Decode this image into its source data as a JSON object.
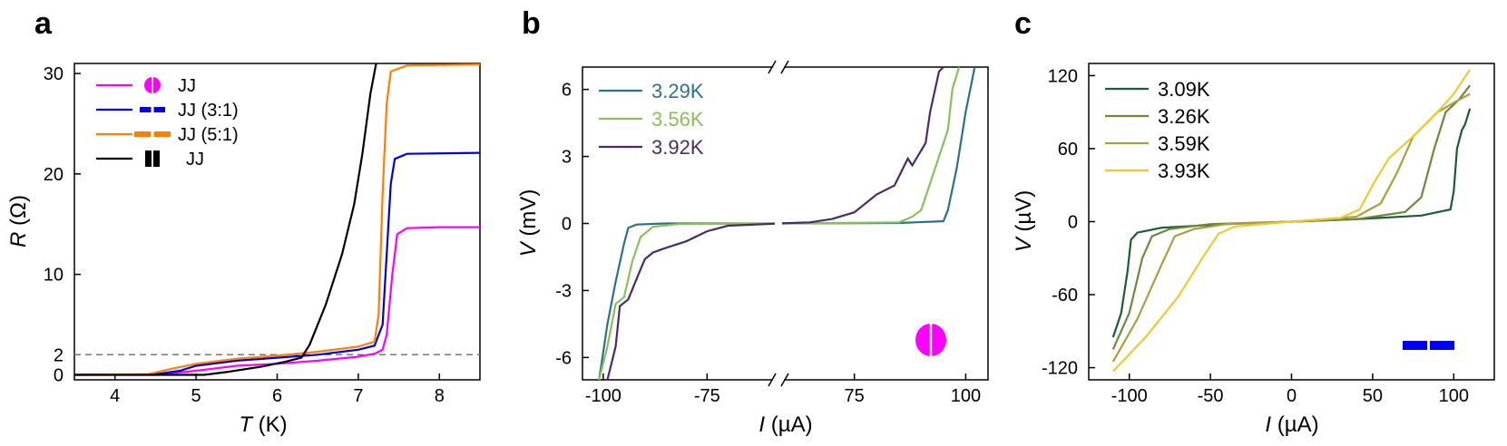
{
  "chart_data": [
    {
      "panel": "a",
      "type": "line",
      "xlabel_var": "T",
      "xlabel_unit": " (K)",
      "ylabel_var": "R",
      "ylabel_unit": " (Ω)",
      "xlim": [
        3.5,
        8.5
      ],
      "ylim": [
        -0.5,
        31
      ],
      "xticks": [
        4,
        5,
        6,
        7,
        8
      ],
      "yticks": [
        0,
        2,
        10,
        20,
        30
      ],
      "ref_line_y": 2,
      "legend_position": "top-left",
      "series": [
        {
          "name": "JJ",
          "color": "#ff00ff",
          "symbol": "circle-split-icon",
          "points": [
            [
              3.5,
              0
            ],
            [
              4.5,
              0
            ],
            [
              5.0,
              0.4
            ],
            [
              5.5,
              0.9
            ],
            [
              6.0,
              1.1
            ],
            [
              6.5,
              1.4
            ],
            [
              7.0,
              1.8
            ],
            [
              7.2,
              2.1
            ],
            [
              7.3,
              2.5
            ],
            [
              7.35,
              4
            ],
            [
              7.42,
              10
            ],
            [
              7.48,
              14
            ],
            [
              7.6,
              14.6
            ],
            [
              8.0,
              14.7
            ],
            [
              8.5,
              14.7
            ]
          ]
        },
        {
          "name": "JJ (3:1)",
          "color": "#0000dd",
          "symbol": "two-bar-icon",
          "points": [
            [
              3.5,
              0
            ],
            [
              4.5,
              0.05
            ],
            [
              4.8,
              0.4
            ],
            [
              5.0,
              0.9
            ],
            [
              5.5,
              1.4
            ],
            [
              6.0,
              1.7
            ],
            [
              6.5,
              2.0
            ],
            [
              7.0,
              2.5
            ],
            [
              7.2,
              2.9
            ],
            [
              7.3,
              5
            ],
            [
              7.35,
              12
            ],
            [
              7.4,
              19
            ],
            [
              7.45,
              21.5
            ],
            [
              7.6,
              22
            ],
            [
              8.5,
              22.1
            ]
          ]
        },
        {
          "name": "JJ (5:1)",
          "color": "#ff8000",
          "symbol": "two-bar-wide-icon",
          "points": [
            [
              3.5,
              0
            ],
            [
              4.4,
              0.05
            ],
            [
              4.7,
              0.6
            ],
            [
              5.0,
              1.1
            ],
            [
              5.5,
              1.6
            ],
            [
              6.0,
              1.9
            ],
            [
              6.5,
              2.3
            ],
            [
              7.0,
              2.8
            ],
            [
              7.2,
              3.3
            ],
            [
              7.25,
              6
            ],
            [
              7.3,
              18
            ],
            [
              7.35,
              27
            ],
            [
              7.4,
              30.2
            ],
            [
              7.6,
              30.8
            ],
            [
              8.5,
              30.9
            ]
          ]
        },
        {
          "name": "JJ",
          "color": "#000000",
          "symbol": "double-block-icon",
          "points": [
            [
              3.5,
              0
            ],
            [
              5.1,
              0
            ],
            [
              5.4,
              0.3
            ],
            [
              5.8,
              0.8
            ],
            [
              6.1,
              1.3
            ],
            [
              6.3,
              1.7
            ],
            [
              6.4,
              3
            ],
            [
              6.6,
              7
            ],
            [
              6.8,
              12
            ],
            [
              6.95,
              17
            ],
            [
              7.05,
              22
            ],
            [
              7.15,
              28
            ],
            [
              7.22,
              31
            ]
          ]
        }
      ]
    },
    {
      "panel": "b",
      "type": "line",
      "xlabel_var": "I",
      "xlabel_unit": " (µA)",
      "ylabel_var": "V",
      "ylabel_unit": " (mV)",
      "xlim": [
        -105,
        105
      ],
      "ylim": [
        -7,
        7
      ],
      "xticks_labels": [
        "-100",
        "-75",
        "75",
        "100"
      ],
      "yticks": [
        -6,
        -3,
        0,
        3,
        6
      ],
      "broken_axis": true,
      "legend_position": "top-left",
      "inset_symbol": "circle-split-icon",
      "series": [
        {
          "name": "3.29K",
          "color": "#2e7088",
          "points": [
            [
              -101,
              -7
            ],
            [
              -99,
              -4.5
            ],
            [
              -97,
              -2.6
            ],
            [
              -95,
              -0.9
            ],
            [
              -94,
              -0.2
            ],
            [
              -92,
              -0.05
            ],
            [
              -85,
              0
            ],
            [
              0,
              0
            ],
            [
              85,
              0.02
            ],
            [
              95,
              0.1
            ],
            [
              96,
              0.6
            ],
            [
              98,
              2.5
            ],
            [
              100,
              5
            ],
            [
              101,
              6
            ],
            [
              102,
              7
            ]
          ]
        },
        {
          "name": "3.56K",
          "color": "#88c05a",
          "points": [
            [
              -101,
              -7
            ],
            [
              -99,
              -5.5
            ],
            [
              -97,
              -3.6
            ],
            [
              -95,
              -3.3
            ],
            [
              -93,
              -1.7
            ],
            [
              -91,
              -0.6
            ],
            [
              -88,
              -0.15
            ],
            [
              -82,
              -0.03
            ],
            [
              0,
              0
            ],
            [
              85,
              0.05
            ],
            [
              88,
              0.3
            ],
            [
              90,
              0.6
            ],
            [
              92,
              1.8
            ],
            [
              94,
              3
            ],
            [
              96,
              4.2
            ],
            [
              97,
              6
            ],
            [
              98.5,
              7
            ]
          ]
        },
        {
          "name": "3.92K",
          "color": "#4a2a6a",
          "points": [
            [
              -99,
              -7
            ],
            [
              -97,
              -5.5
            ],
            [
              -96,
              -3.7
            ],
            [
              -94,
              -3.4
            ],
            [
              -92,
              -2.5
            ],
            [
              -90,
              -1.6
            ],
            [
              -88,
              -1.3
            ],
            [
              -85,
              -1.1
            ],
            [
              -80,
              -0.8
            ],
            [
              -75,
              -0.35
            ],
            [
              -70,
              -0.1
            ],
            [
              -60,
              -0.02
            ],
            [
              0,
              0
            ],
            [
              65,
              0.05
            ],
            [
              70,
              0.2
            ],
            [
              75,
              0.5
            ],
            [
              80,
              1.3
            ],
            [
              84,
              1.7
            ],
            [
              87,
              2.9
            ],
            [
              88,
              2.6
            ],
            [
              91,
              3.6
            ],
            [
              92,
              5
            ],
            [
              94,
              6.8
            ],
            [
              95,
              7
            ]
          ]
        }
      ]
    },
    {
      "panel": "c",
      "type": "line",
      "xlabel_var": "I",
      "xlabel_unit": " (µA)",
      "ylabel_var": "V",
      "ylabel_unit": " (µV)",
      "xlim": [
        -125,
        125
      ],
      "ylim": [
        -130,
        130
      ],
      "xticks": [
        -100,
        -50,
        0,
        50,
        100
      ],
      "yticks": [
        -120,
        -60,
        0,
        60,
        120
      ],
      "legend_position": "top-left",
      "inset_symbol": "two-bar-icon",
      "series": [
        {
          "name": "3.09K",
          "color": "#1e5a32",
          "points": [
            [
              -110,
              -95
            ],
            [
              -105,
              -75
            ],
            [
              -101,
              -40
            ],
            [
              -99,
              -15
            ],
            [
              -95,
              -9
            ],
            [
              -80,
              -5
            ],
            [
              -40,
              -2
            ],
            [
              0,
              0
            ],
            [
              40,
              2
            ],
            [
              80,
              5
            ],
            [
              98,
              10
            ],
            [
              100,
              25
            ],
            [
              102,
              60
            ],
            [
              105,
              75
            ],
            [
              107,
              80
            ],
            [
              110,
              93
            ]
          ]
        },
        {
          "name": "3.26K",
          "color": "#6a8a3a",
          "points": [
            [
              -110,
              -105
            ],
            [
              -100,
              -75
            ],
            [
              -92,
              -30
            ],
            [
              -86,
              -12
            ],
            [
              -75,
              -6
            ],
            [
              -50,
              -2
            ],
            [
              0,
              0
            ],
            [
              40,
              2
            ],
            [
              70,
              8
            ],
            [
              80,
              20
            ],
            [
              88,
              60
            ],
            [
              95,
              90
            ],
            [
              103,
              100
            ],
            [
              110,
              112
            ]
          ]
        },
        {
          "name": "3.59K",
          "color": "#a8a040",
          "points": [
            [
              -110,
              -115
            ],
            [
              -95,
              -80
            ],
            [
              -80,
              -35
            ],
            [
              -72,
              -12
            ],
            [
              -60,
              -6
            ],
            [
              -40,
              -2
            ],
            [
              0,
              0
            ],
            [
              40,
              4
            ],
            [
              55,
              15
            ],
            [
              65,
              40
            ],
            [
              75,
              70
            ],
            [
              90,
              90
            ],
            [
              103,
              100
            ],
            [
              110,
              105
            ]
          ]
        },
        {
          "name": "3.93K",
          "color": "#f0c830",
          "points": [
            [
              -110,
              -123
            ],
            [
              -90,
              -95
            ],
            [
              -70,
              -62
            ],
            [
              -55,
              -30
            ],
            [
              -45,
              -10
            ],
            [
              -35,
              -4
            ],
            [
              0,
              0
            ],
            [
              30,
              3
            ],
            [
              42,
              10
            ],
            [
              50,
              30
            ],
            [
              60,
              52
            ],
            [
              75,
              70
            ],
            [
              90,
              90
            ],
            [
              100,
              105
            ],
            [
              110,
              125
            ]
          ]
        }
      ]
    }
  ]
}
